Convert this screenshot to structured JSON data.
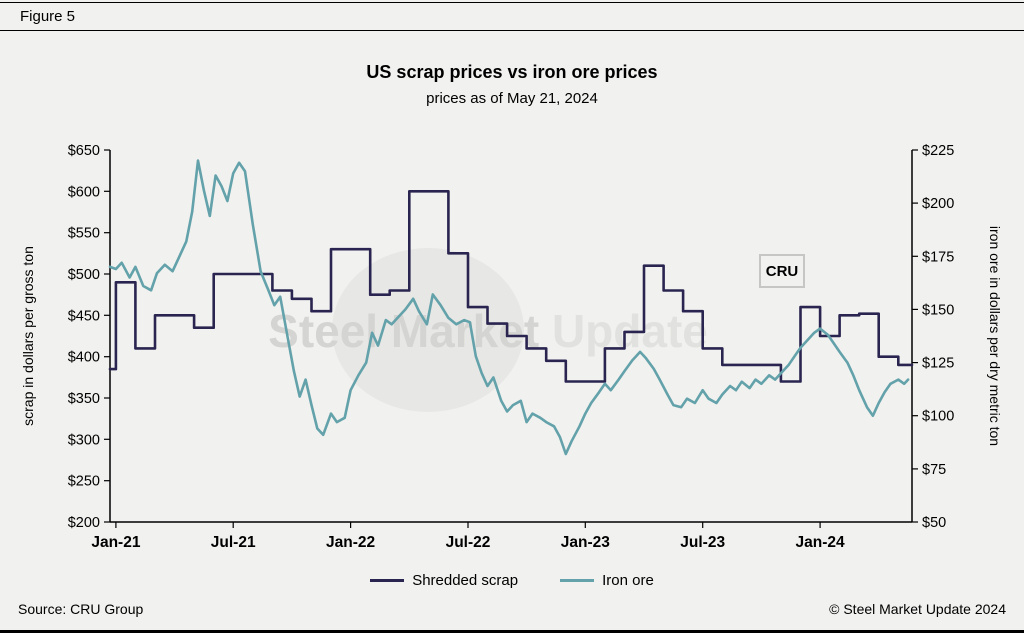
{
  "figure_label": "Figure 5",
  "watermark": {
    "text_main": "Steel Market",
    "text_light": "Update",
    "badge": "CRU"
  },
  "footer": {
    "source": "Source: CRU Group",
    "copyright": "© Steel Market Update 2024"
  },
  "colors": {
    "scrap_line": "#2a2550",
    "iron_ore_line": "#63a2aa",
    "background": "#f1f1ef"
  },
  "chart_data": {
    "type": "line",
    "title": "US scrap prices vs iron ore prices",
    "subtitle": "prices as of May 21, 2024",
    "grid": false,
    "legend_position": "bottom",
    "x_axis": {
      "range": [
        -0.3,
        40.7
      ],
      "unit": "months from Jan-2021",
      "tick_positions": [
        0,
        6,
        12,
        18,
        24,
        30,
        36
      ],
      "tick_labels": [
        "Jan-21",
        "Jul-21",
        "Jan-22",
        "Jul-22",
        "Jan-23",
        "Jul-23",
        "Jan-24"
      ]
    },
    "y_axis_left": {
      "label": "scrap in dollars per gross ton",
      "range": [
        200,
        650
      ],
      "ticks": [
        200,
        250,
        300,
        350,
        400,
        450,
        500,
        550,
        600,
        650
      ],
      "tick_labels": [
        "$200",
        "$250",
        "$300",
        "$350",
        "$400",
        "$450",
        "$500",
        "$550",
        "$600",
        "$650"
      ]
    },
    "y_axis_right": {
      "label": "iron ore in dollars per dry metric ton",
      "range": [
        50,
        225
      ],
      "ticks": [
        50,
        75,
        100,
        125,
        150,
        175,
        200,
        225
      ],
      "tick_labels": [
        "$50",
        "$75",
        "$100",
        "$125",
        "$150",
        "$175",
        "$200",
        "$225"
      ]
    },
    "series": [
      {
        "name": "Shredded scrap",
        "axis": "left",
        "style": "step",
        "color": "#2a2550",
        "points": [
          [
            -0.3,
            385
          ],
          [
            0,
            490
          ],
          [
            1,
            410
          ],
          [
            2,
            450
          ],
          [
            3,
            450
          ],
          [
            4,
            435
          ],
          [
            5,
            500
          ],
          [
            6,
            500
          ],
          [
            7,
            500
          ],
          [
            8,
            480
          ],
          [
            9,
            470
          ],
          [
            10,
            455
          ],
          [
            11,
            530
          ],
          [
            12,
            530
          ],
          [
            13,
            475
          ],
          [
            14,
            480
          ],
          [
            15,
            600
          ],
          [
            16,
            600
          ],
          [
            17,
            525
          ],
          [
            18,
            460
          ],
          [
            19,
            440
          ],
          [
            20,
            425
          ],
          [
            21,
            410
          ],
          [
            22,
            395
          ],
          [
            23,
            370
          ],
          [
            24,
            370
          ],
          [
            25,
            410
          ],
          [
            26,
            430
          ],
          [
            27,
            510
          ],
          [
            28,
            480
          ],
          [
            29,
            455
          ],
          [
            30,
            410
          ],
          [
            31,
            390
          ],
          [
            32,
            390
          ],
          [
            33,
            390
          ],
          [
            34,
            370
          ],
          [
            35,
            460
          ],
          [
            36,
            425
          ],
          [
            37,
            450
          ],
          [
            38,
            452
          ],
          [
            39,
            400
          ],
          [
            40,
            390
          ]
        ]
      },
      {
        "name": "Iron ore",
        "axis": "right",
        "style": "line",
        "color": "#63a2aa",
        "points": [
          [
            -0.3,
            170
          ],
          [
            0,
            169
          ],
          [
            0.3,
            172
          ],
          [
            0.7,
            165
          ],
          [
            1,
            170
          ],
          [
            1.4,
            161
          ],
          [
            1.8,
            159
          ],
          [
            2.1,
            167
          ],
          [
            2.5,
            171
          ],
          [
            2.9,
            168
          ],
          [
            3.2,
            174
          ],
          [
            3.6,
            182
          ],
          [
            3.9,
            196
          ],
          [
            4.2,
            220
          ],
          [
            4.5,
            206
          ],
          [
            4.8,
            194
          ],
          [
            5.1,
            213
          ],
          [
            5.4,
            208
          ],
          [
            5.7,
            201
          ],
          [
            6,
            214
          ],
          [
            6.3,
            219
          ],
          [
            6.6,
            215
          ],
          [
            7,
            190
          ],
          [
            7.4,
            168
          ],
          [
            7.8,
            159
          ],
          [
            8.1,
            152
          ],
          [
            8.4,
            156
          ],
          [
            8.8,
            136
          ],
          [
            9.1,
            121
          ],
          [
            9.4,
            109
          ],
          [
            9.7,
            117
          ],
          [
            10,
            105
          ],
          [
            10.3,
            94
          ],
          [
            10.6,
            91
          ],
          [
            11,
            101
          ],
          [
            11.3,
            97
          ],
          [
            11.7,
            99
          ],
          [
            12,
            112
          ],
          [
            12.4,
            119
          ],
          [
            12.8,
            125
          ],
          [
            13.1,
            139
          ],
          [
            13.4,
            133
          ],
          [
            13.8,
            145
          ],
          [
            14.1,
            143
          ],
          [
            14.5,
            147
          ],
          [
            14.8,
            150
          ],
          [
            15.2,
            155
          ],
          [
            15.5,
            149
          ],
          [
            15.9,
            143
          ],
          [
            16.2,
            157
          ],
          [
            16.6,
            152
          ],
          [
            17,
            146
          ],
          [
            17.4,
            143
          ],
          [
            17.8,
            145
          ],
          [
            18.1,
            144
          ],
          [
            18.4,
            128
          ],
          [
            18.7,
            120
          ],
          [
            19,
            114
          ],
          [
            19.3,
            118
          ],
          [
            19.7,
            107
          ],
          [
            20,
            102
          ],
          [
            20.3,
            105
          ],
          [
            20.7,
            107
          ],
          [
            21,
            97
          ],
          [
            21.3,
            101
          ],
          [
            21.7,
            99
          ],
          [
            22,
            97
          ],
          [
            22.4,
            95
          ],
          [
            22.7,
            90
          ],
          [
            23,
            82
          ],
          [
            23.3,
            88
          ],
          [
            23.7,
            95
          ],
          [
            24,
            101
          ],
          [
            24.3,
            106
          ],
          [
            24.7,
            111
          ],
          [
            25,
            115
          ],
          [
            25.3,
            112
          ],
          [
            25.7,
            117
          ],
          [
            26,
            121
          ],
          [
            26.4,
            126
          ],
          [
            26.8,
            130
          ],
          [
            27.1,
            127
          ],
          [
            27.5,
            122
          ],
          [
            27.8,
            117
          ],
          [
            28.2,
            110
          ],
          [
            28.5,
            105
          ],
          [
            28.9,
            104
          ],
          [
            29.2,
            108
          ],
          [
            29.6,
            106
          ],
          [
            30,
            112
          ],
          [
            30.3,
            108
          ],
          [
            30.7,
            106
          ],
          [
            31,
            110
          ],
          [
            31.4,
            114
          ],
          [
            31.7,
            112
          ],
          [
            32,
            116
          ],
          [
            32.4,
            113
          ],
          [
            32.7,
            117
          ],
          [
            33,
            115
          ],
          [
            33.4,
            119
          ],
          [
            33.7,
            117
          ],
          [
            34,
            120
          ],
          [
            34.4,
            124
          ],
          [
            34.7,
            128
          ],
          [
            35,
            132
          ],
          [
            35.4,
            136
          ],
          [
            35.7,
            139
          ],
          [
            36,
            141
          ],
          [
            36.4,
            138
          ],
          [
            36.7,
            134
          ],
          [
            37,
            130
          ],
          [
            37.4,
            125
          ],
          [
            37.7,
            119
          ],
          [
            38,
            112
          ],
          [
            38.4,
            104
          ],
          [
            38.7,
            100
          ],
          [
            39,
            106
          ],
          [
            39.3,
            111
          ],
          [
            39.6,
            115
          ],
          [
            40,
            117
          ],
          [
            40.3,
            115
          ],
          [
            40.5,
            117
          ]
        ]
      }
    ]
  }
}
